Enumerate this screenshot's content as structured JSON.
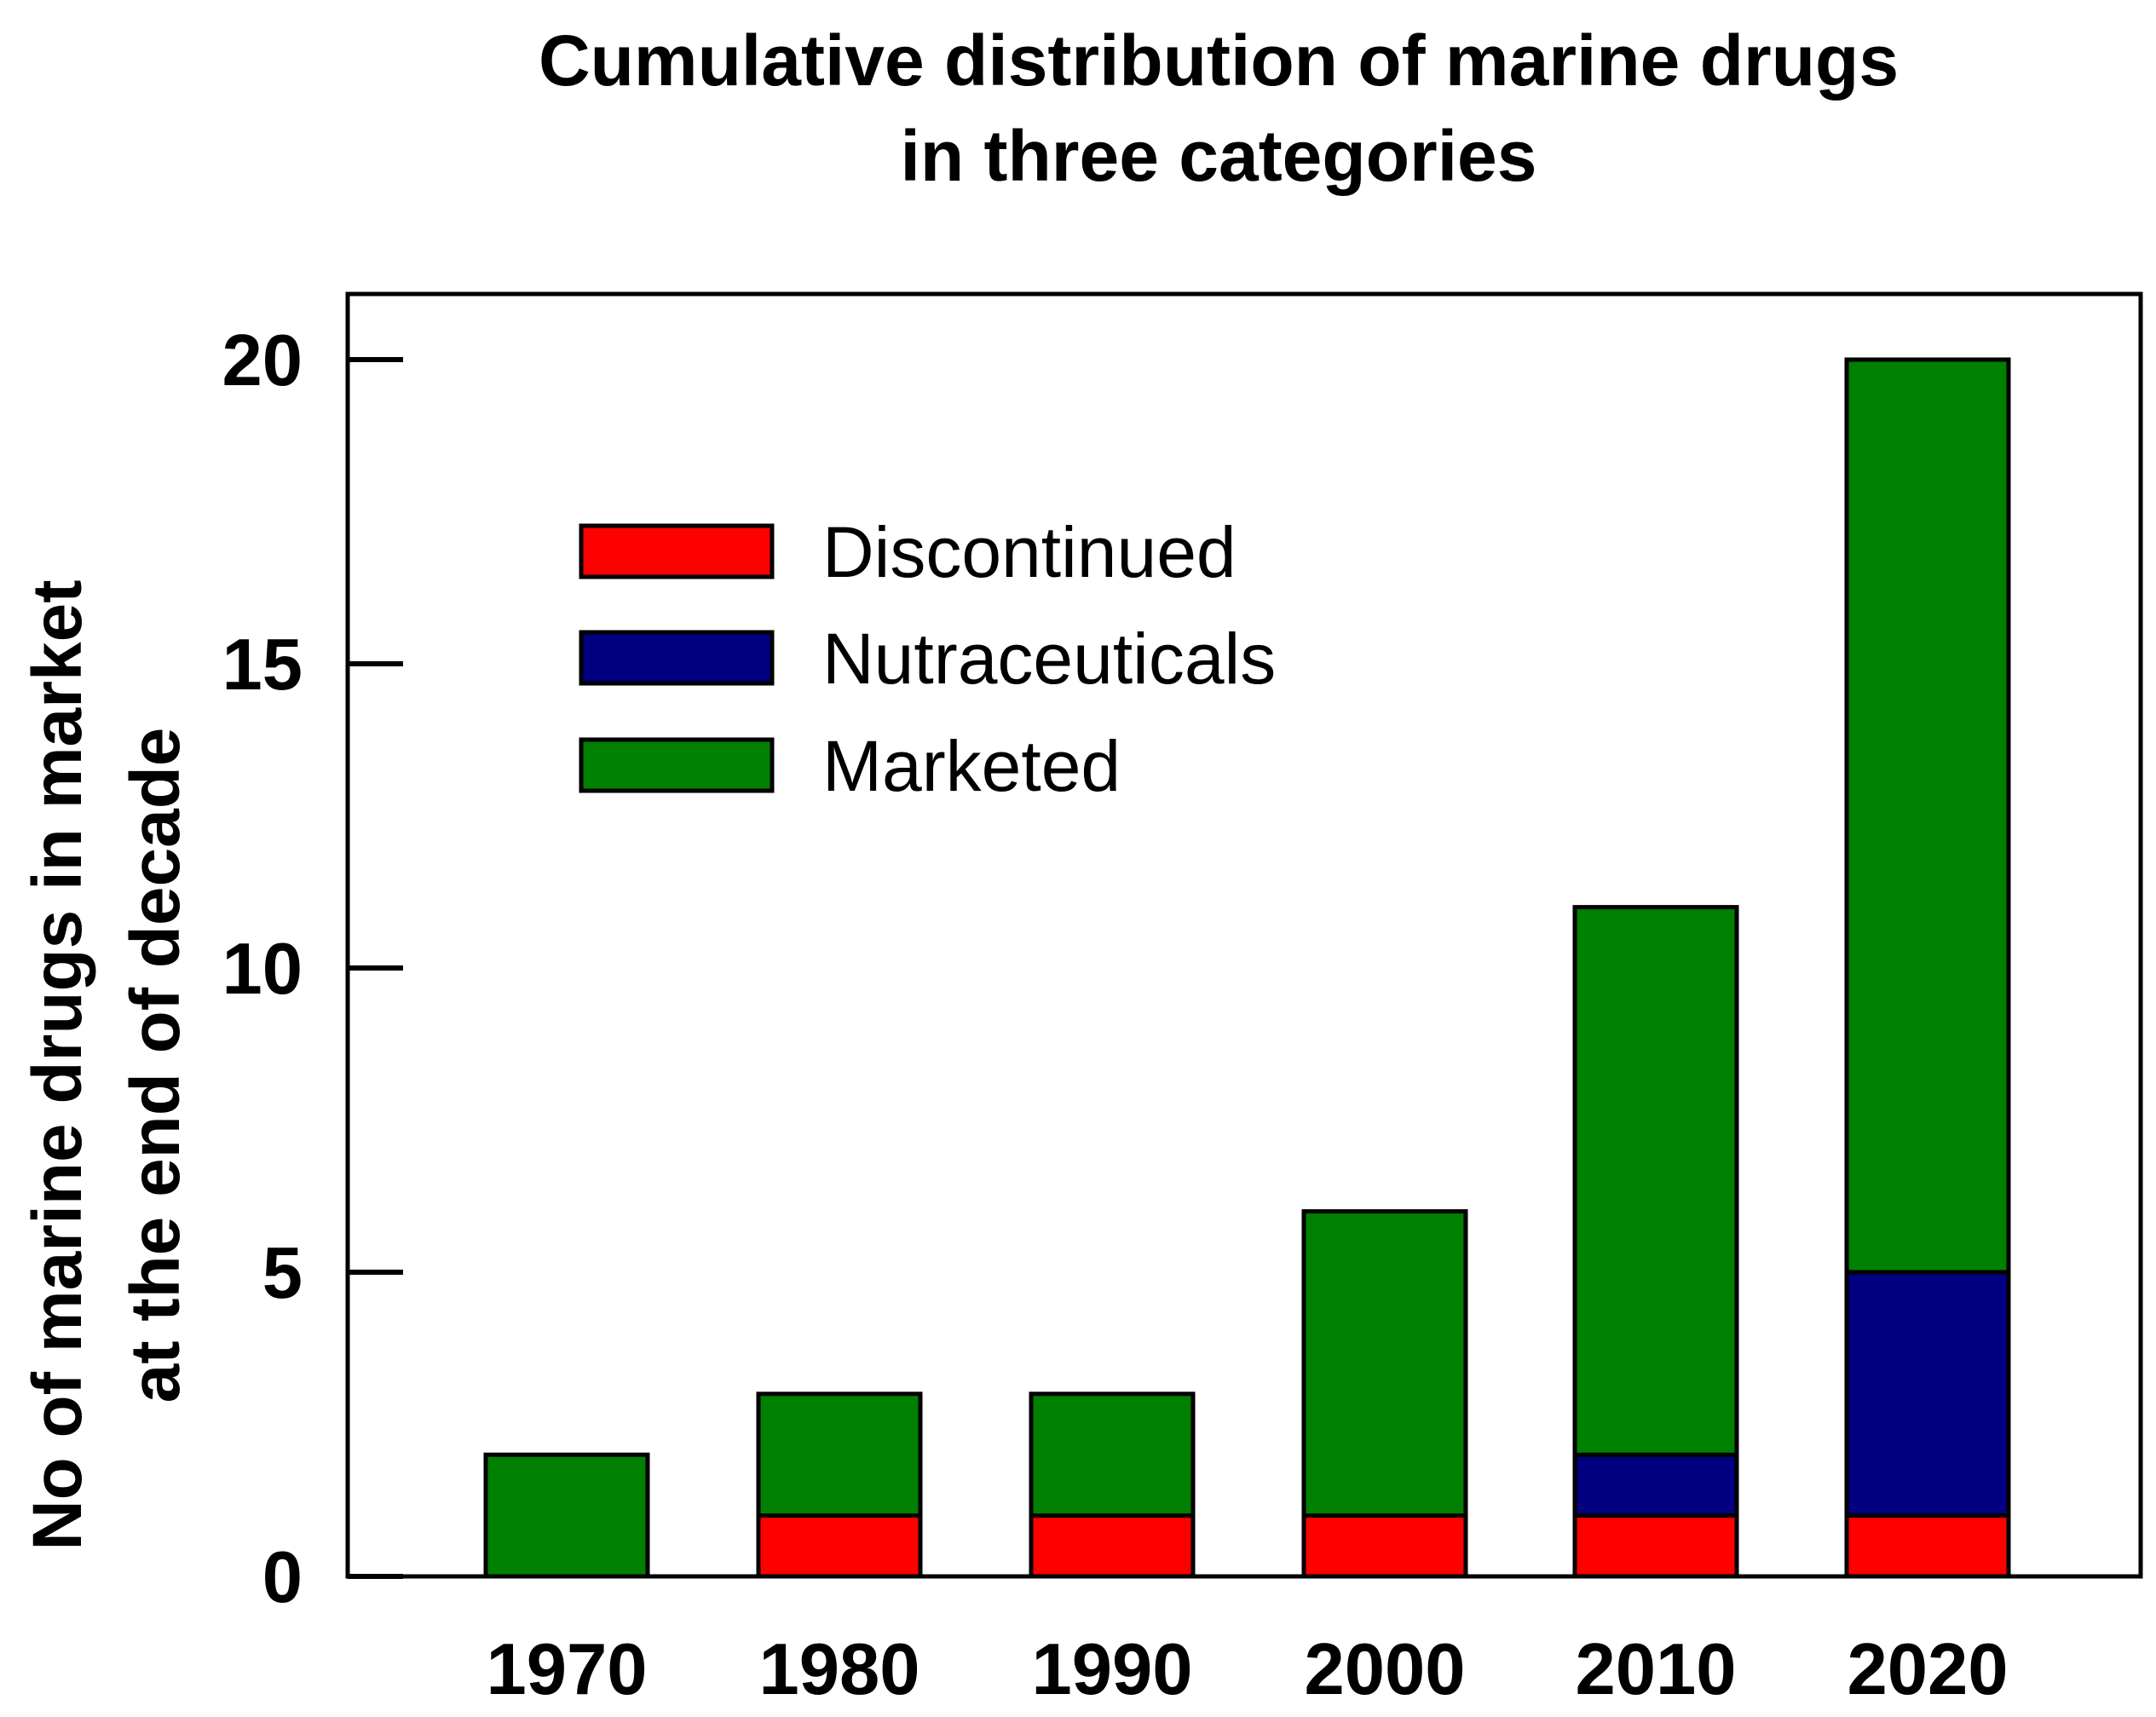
{
  "chart_data": {
    "type": "bar",
    "stacked": true,
    "title_lines": [
      "Cumulative distribution of marine drugs",
      "in three categories"
    ],
    "xlabel": "",
    "ylabel_lines": [
      "No of marine drugs in market",
      "at the end of decade"
    ],
    "categories": [
      "1970",
      "1980",
      "1990",
      "2000",
      "2010",
      "2020"
    ],
    "ylim": [
      0,
      21
    ],
    "yticks": [
      0,
      5,
      10,
      15,
      20
    ],
    "grid": false,
    "legend_position": "upper-left",
    "series": [
      {
        "name": "Discontinued",
        "color": "#ff0000",
        "values": [
          0,
          1,
          1,
          1,
          1,
          1
        ]
      },
      {
        "name": "Nutraceuticals",
        "color": "#000080",
        "values": [
          0,
          0,
          0,
          0,
          1,
          4
        ]
      },
      {
        "name": "Marketed",
        "color": "#008000",
        "values": [
          2,
          2,
          2,
          5,
          9,
          15
        ]
      }
    ]
  }
}
